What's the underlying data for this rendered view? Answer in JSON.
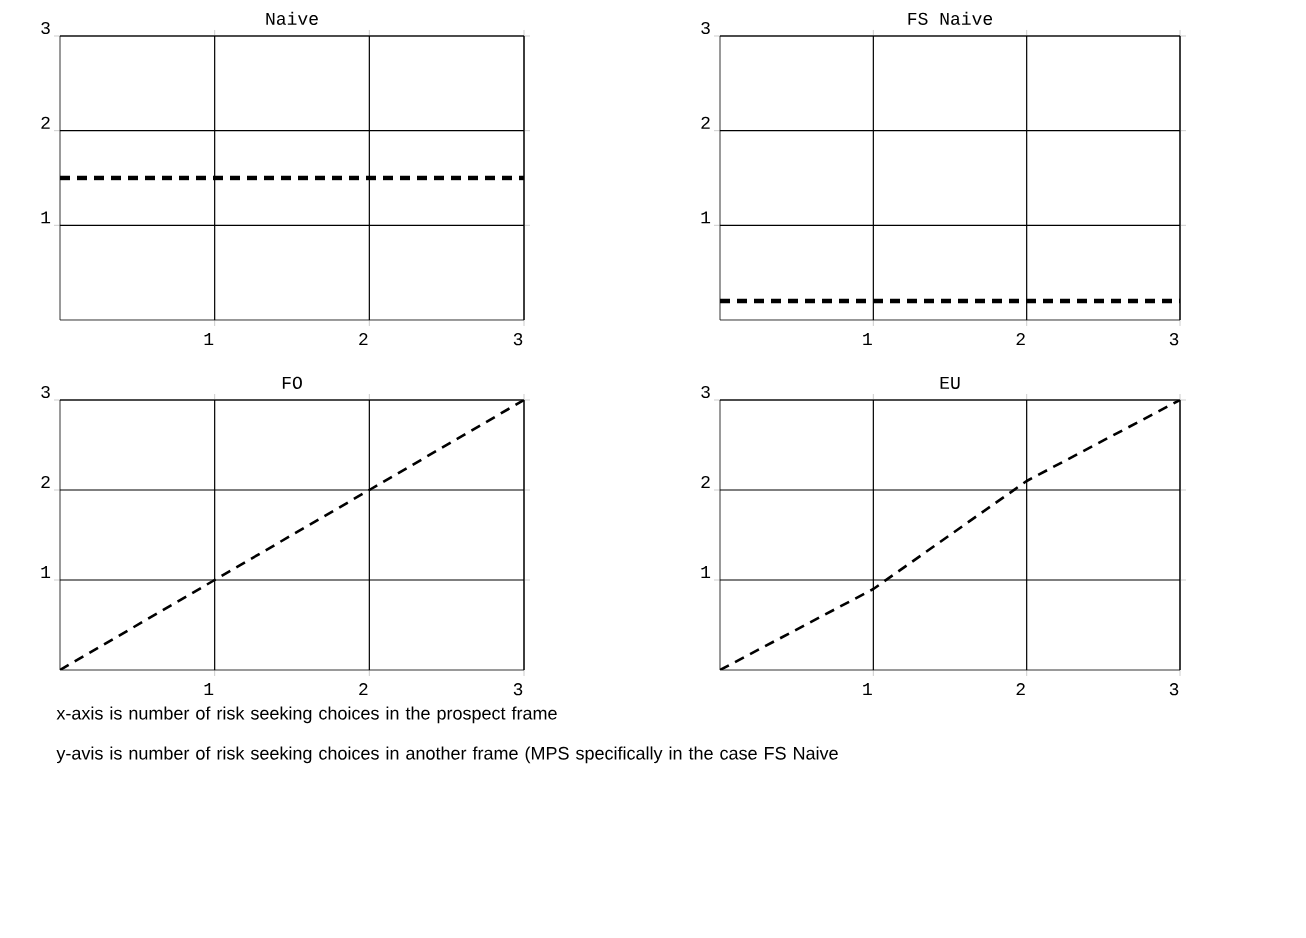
{
  "chart_data": [
    {
      "type": "line",
      "title": "Naive",
      "xlim": [
        0,
        3
      ],
      "ylim": [
        0,
        3
      ],
      "xticks": [
        1,
        2,
        3
      ],
      "yticks": [
        1,
        2,
        3
      ],
      "grid": true,
      "line_style": "dashed",
      "series": [
        {
          "color": "#000000",
          "x": [
            0,
            3
          ],
          "values": [
            1.5,
            1.5
          ]
        }
      ]
    },
    {
      "type": "line",
      "title": "FS Naive",
      "xlim": [
        0,
        3
      ],
      "ylim": [
        0,
        3
      ],
      "xticks": [
        1,
        2,
        3
      ],
      "yticks": [
        1,
        2,
        3
      ],
      "grid": true,
      "line_style": "dashed",
      "series": [
        {
          "color": "#000000",
          "x": [
            0,
            3
          ],
          "values": [
            0.2,
            0.2
          ]
        }
      ]
    },
    {
      "type": "line",
      "title": "FO",
      "xlim": [
        0,
        3
      ],
      "ylim": [
        0,
        3
      ],
      "xticks": [
        1,
        2,
        3
      ],
      "yticks": [
        1,
        2,
        3
      ],
      "grid": true,
      "line_style": "dashed",
      "series": [
        {
          "color": "#000000",
          "x": [
            0,
            1,
            2,
            3
          ],
          "values": [
            0,
            1,
            2,
            3
          ]
        }
      ]
    },
    {
      "type": "line",
      "title": "EU",
      "xlim": [
        0,
        3
      ],
      "ylim": [
        0,
        3
      ],
      "xticks": [
        1,
        2,
        3
      ],
      "yticks": [
        1,
        2,
        3
      ],
      "grid": true,
      "line_style": "dashed",
      "series": [
        {
          "color": "#000000",
          "x": [
            0,
            1,
            2,
            3
          ],
          "values": [
            0,
            0.9,
            2.1,
            3
          ]
        }
      ],
      "annotations": [
        "x-axis is number of risk seeking choices in the prospect frame",
        "y-avis is number of risk seeking choices in another frame (MPS specifically in the case FS Naive"
      ]
    }
  ]
}
